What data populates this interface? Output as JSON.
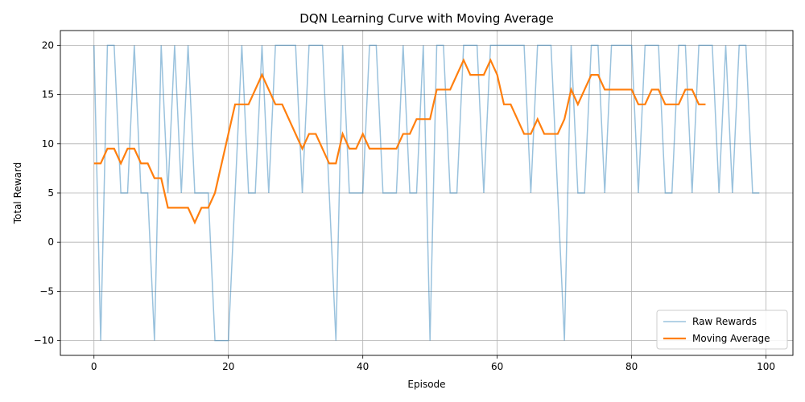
{
  "chart_data": {
    "type": "line",
    "title": "DQN Learning Curve with Moving Average",
    "xlabel": "Episode",
    "ylabel": "Total Reward",
    "xlim": [
      -5,
      104
    ],
    "ylim": [
      -11.5,
      21.5
    ],
    "xticks": [
      0,
      20,
      40,
      60,
      80,
      100
    ],
    "yticks": [
      -10,
      -5,
      0,
      5,
      10,
      15,
      20
    ],
    "xtick_labels": [
      "0",
      "20",
      "40",
      "60",
      "80",
      "100"
    ],
    "ytick_labels": [
      "−10",
      "−5",
      "0",
      "5",
      "10",
      "15",
      "20"
    ],
    "grid": true,
    "legend_position": "bottom-right",
    "legend": [
      "Raw Rewards",
      "Moving Average"
    ],
    "series": [
      {
        "name": "Raw Rewards",
        "color": "#1f77b4",
        "x_start": 0,
        "values": [
          20,
          -10,
          20,
          20,
          5,
          5,
          20,
          5,
          5,
          -10,
          20,
          5,
          20,
          5,
          20,
          5,
          5,
          5,
          -10,
          -10,
          -10,
          5,
          20,
          5,
          5,
          20,
          5,
          20,
          20,
          20,
          20,
          5,
          20,
          20,
          20,
          5,
          -10,
          20,
          5,
          5,
          5,
          20,
          20,
          5,
          5,
          5,
          20,
          5,
          5,
          20,
          -10,
          20,
          20,
          5,
          5,
          20,
          20,
          20,
          5,
          20,
          20,
          20,
          20,
          20,
          20,
          5,
          20,
          20,
          20,
          5,
          -10,
          20,
          5,
          5,
          20,
          20,
          5,
          20,
          20,
          20,
          20,
          5,
          20,
          20,
          20,
          5,
          5,
          20,
          20,
          5,
          20,
          20,
          20,
          5,
          20,
          5,
          20,
          20,
          5,
          5
        ]
      },
      {
        "name": "Moving Average",
        "color": "#ff7f0e",
        "x_start": 0,
        "values": [
          8,
          8,
          9.5,
          9.5,
          8,
          9.5,
          9.5,
          8,
          8,
          6.5,
          6.5,
          3.5,
          3.5,
          3.5,
          3.5,
          2,
          3.5,
          3.5,
          5,
          8,
          11,
          14,
          14,
          14,
          15.5,
          17,
          15.5,
          14,
          14,
          12.5,
          11,
          9.5,
          11,
          11,
          9.5,
          8,
          8,
          11,
          9.5,
          9.5,
          11,
          9.5,
          9.5,
          9.5,
          9.5,
          9.5,
          11,
          11,
          12.5,
          12.5,
          12.5,
          15.5,
          15.5,
          15.5,
          17,
          18.5,
          17,
          17,
          17,
          18.5,
          17,
          14,
          14,
          12.5,
          11,
          11,
          12.5,
          11,
          11,
          11,
          12.5,
          15.5,
          14,
          15.5,
          17,
          17,
          15.5,
          15.5,
          15.5,
          15.5,
          15.5,
          14,
          14,
          15.5,
          15.5,
          14,
          14,
          14,
          15.5,
          15.5,
          14,
          14
        ]
      }
    ]
  }
}
